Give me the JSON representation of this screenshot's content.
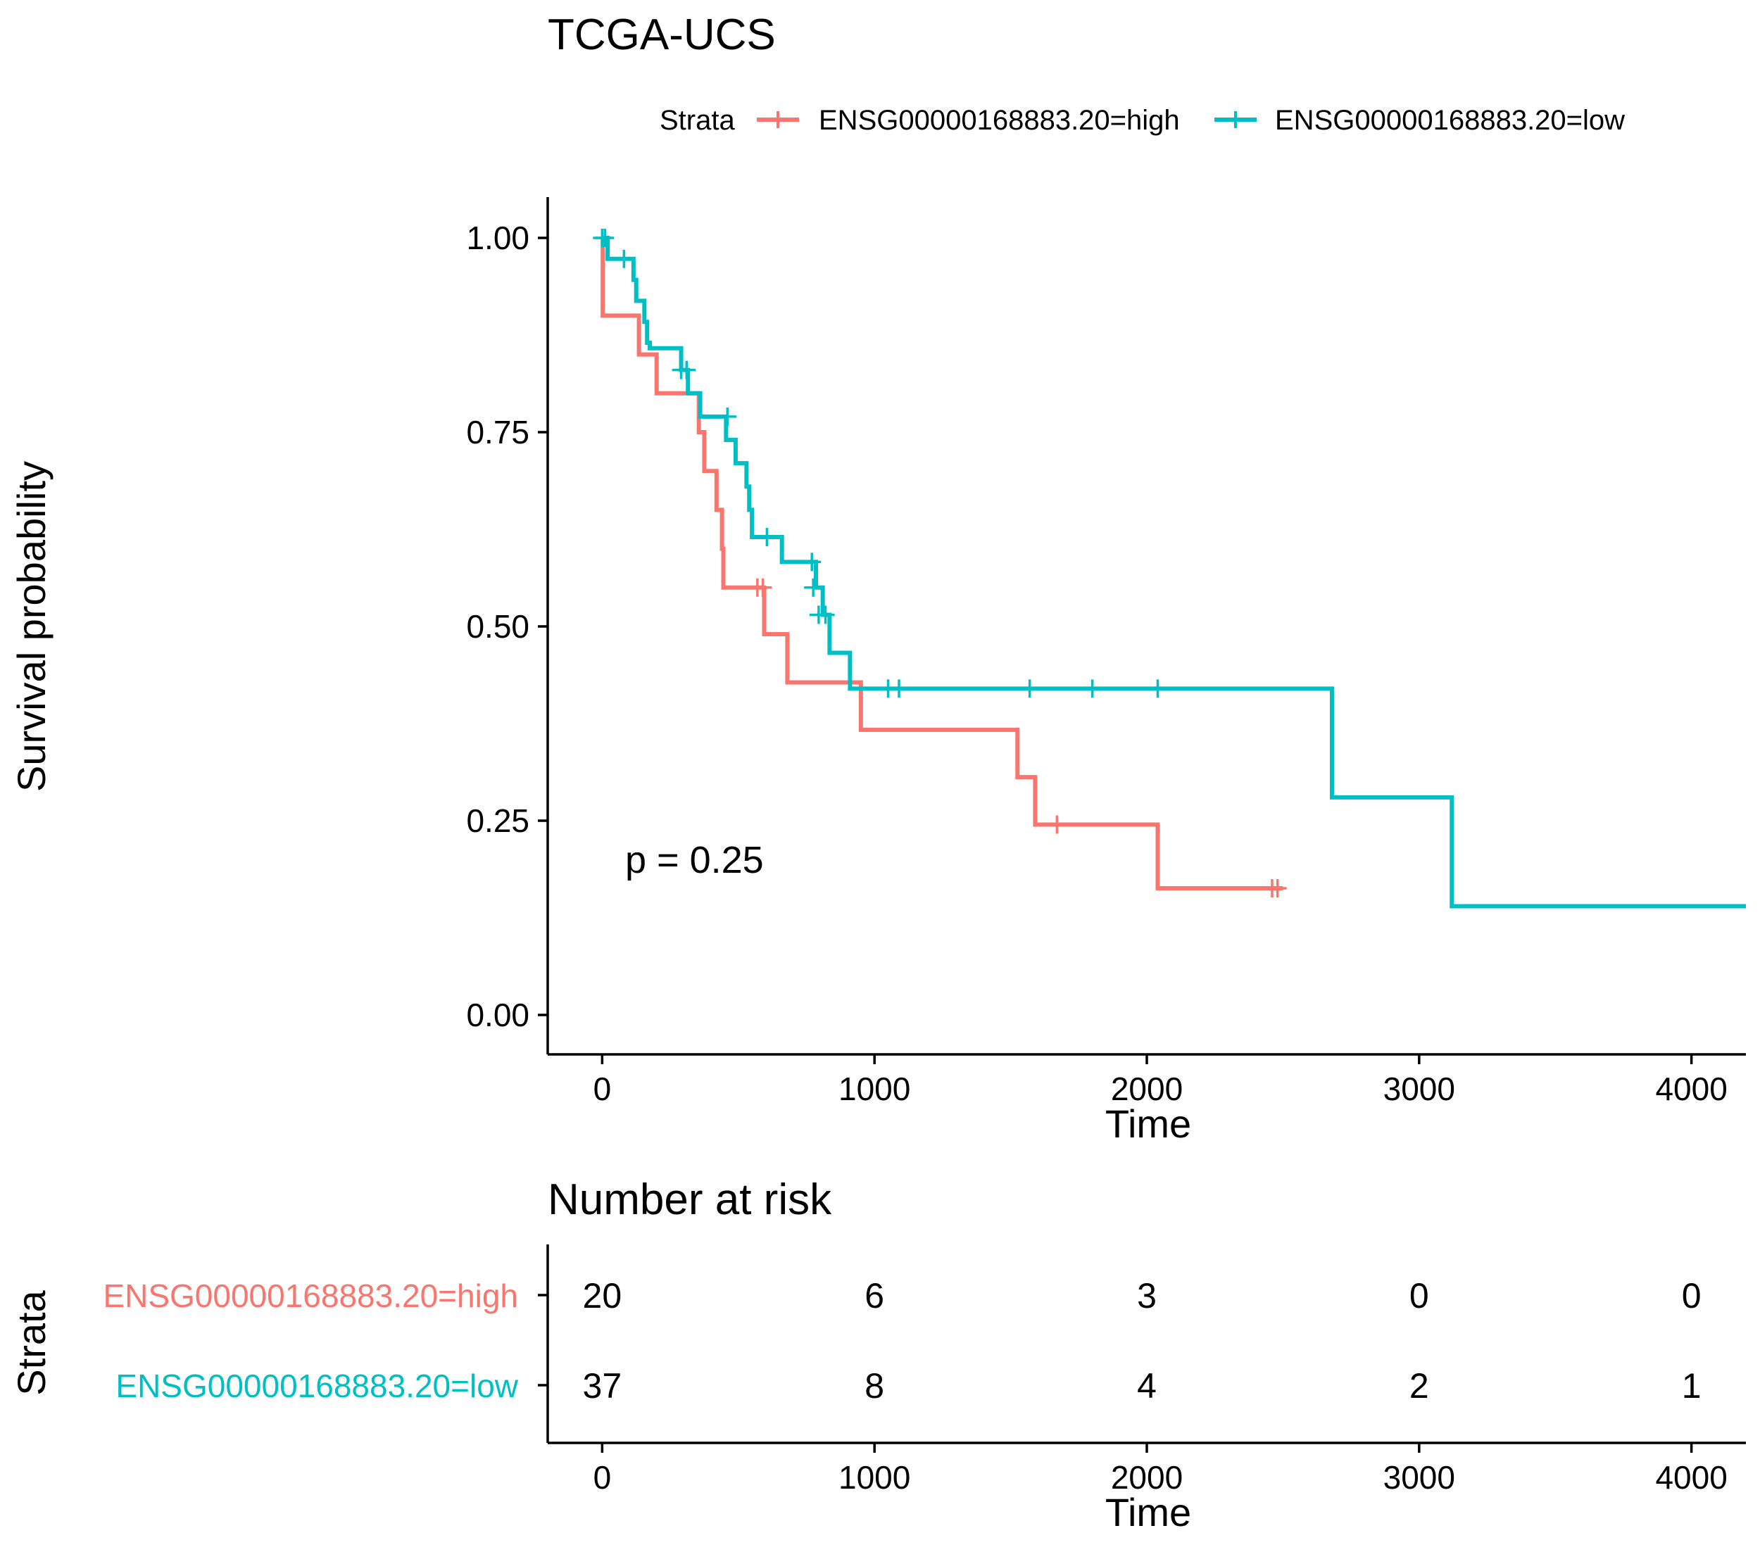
{
  "chart_data": [
    {
      "type": "line",
      "subtype": "kaplan-meier",
      "title": "TCGA-UCS",
      "xlabel": "Time",
      "ylabel": "Survival probability",
      "xlim": [
        -200,
        4200
      ],
      "ylim": [
        0,
        1
      ],
      "x_ticks": [
        "0",
        "1000",
        "2000",
        "3000",
        "4000"
      ],
      "y_ticks": [
        "0.00",
        "0.25",
        "0.50",
        "0.75",
        "1.00"
      ],
      "grid": false,
      "legend": {
        "title": "Strata",
        "placement": "top",
        "entries": [
          "ENSG00000168883.20=high",
          "ENSG00000168883.20=low"
        ]
      },
      "annotation": "p = 0.25",
      "series": [
        {
          "name": "ENSG00000168883.20=high",
          "color": "#F8766D",
          "steps": [
            [
              0,
              1.0
            ],
            [
              2,
              0.9
            ],
            [
              135,
              0.85
            ],
            [
              200,
              0.8
            ],
            [
              355,
              0.75
            ],
            [
              375,
              0.7
            ],
            [
              420,
              0.65
            ],
            [
              440,
              0.6
            ],
            [
              445,
              0.55
            ],
            [
              595,
              0.49
            ],
            [
              680,
              0.428
            ],
            [
              950,
              0.367
            ],
            [
              1525,
              0.306
            ],
            [
              1590,
              0.245
            ],
            [
              2040,
              0.163
            ],
            [
              2500,
              0.163
            ]
          ],
          "censor": [
            [
              570,
              0.55
            ],
            [
              590,
              0.55
            ],
            [
              1670,
              0.245
            ],
            [
              2460,
              0.163
            ],
            [
              2480,
              0.163
            ]
          ]
        },
        {
          "name": "ENSG00000168883.20=low",
          "color": "#00BFC4",
          "steps": [
            [
              0,
              1.0
            ],
            [
              20,
              0.973
            ],
            [
              115,
              0.946
            ],
            [
              125,
              0.919
            ],
            [
              155,
              0.892
            ],
            [
              165,
              0.865
            ],
            [
              175,
              0.858
            ],
            [
              290,
              0.83
            ],
            [
              315,
              0.8
            ],
            [
              360,
              0.77
            ],
            [
              455,
              0.74
            ],
            [
              490,
              0.71
            ],
            [
              530,
              0.68
            ],
            [
              540,
              0.65
            ],
            [
              550,
              0.615
            ],
            [
              660,
              0.583
            ],
            [
              785,
              0.55
            ],
            [
              810,
              0.515
            ],
            [
              835,
              0.466
            ],
            [
              910,
              0.42
            ],
            [
              2680,
              0.28
            ],
            [
              3120,
              0.14
            ],
            [
              4200,
              0.14
            ]
          ],
          "censor": [
            [
              0,
              1.0
            ],
            [
              10,
              1.0
            ],
            [
              80,
              0.973
            ],
            [
              290,
              0.83
            ],
            [
              310,
              0.83
            ],
            [
              460,
              0.77
            ],
            [
              605,
              0.615
            ],
            [
              770,
              0.583
            ],
            [
              775,
              0.55
            ],
            [
              795,
              0.515
            ],
            [
              820,
              0.515
            ],
            [
              1050,
              0.42
            ],
            [
              1090,
              0.42
            ],
            [
              1570,
              0.42
            ],
            [
              1800,
              0.42
            ],
            [
              2040,
              0.42
            ]
          ]
        }
      ]
    },
    {
      "type": "table",
      "title": "Number at risk",
      "xlabel": "Time",
      "ylabel": "Strata",
      "x_ticks": [
        "0",
        "1000",
        "2000",
        "3000",
        "4000"
      ],
      "rows": [
        {
          "name": "ENSG00000168883.20=high",
          "color": "#F8766D",
          "values": [
            "20",
            "6",
            "3",
            "0",
            "0"
          ]
        },
        {
          "name": "ENSG00000168883.20=low",
          "color": "#00BFC4",
          "values": [
            "37",
            "8",
            "4",
            "2",
            "1"
          ]
        }
      ]
    }
  ]
}
